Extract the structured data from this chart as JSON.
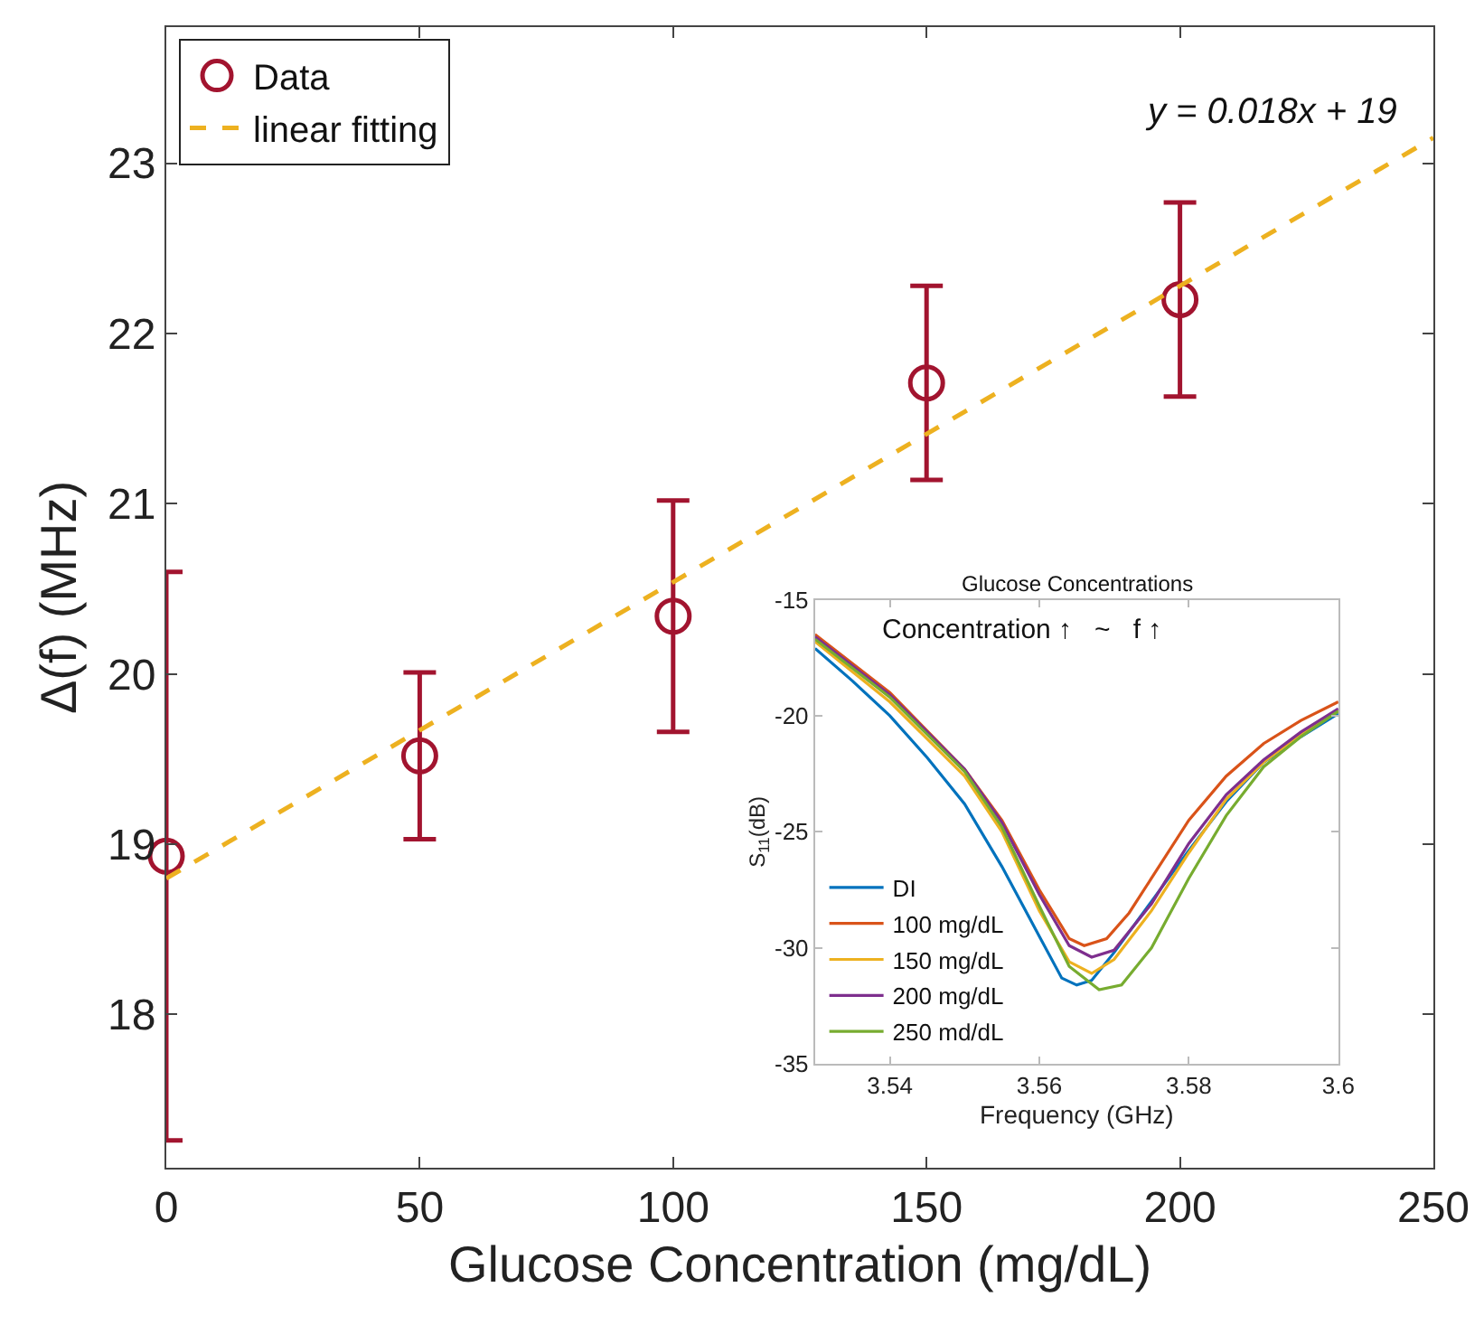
{
  "chart_data": [
    {
      "type": "scatter",
      "xlabel": "Glucose Concentration (mg/dL)",
      "ylabel": "Δ(f) (MHz)",
      "xlim": [
        0,
        250
      ],
      "xticks": [
        0,
        50,
        100,
        150,
        200,
        250
      ],
      "ylim": [
        17.1,
        23.8
      ],
      "yticks": [
        18,
        19,
        20,
        21,
        22,
        23
      ],
      "legend": "top left",
      "annotations": [
        "y = 0.018x + 19"
      ],
      "series": [
        {
          "name": "Data",
          "type": "scatter",
          "marker": "circle",
          "color": "#a2142f",
          "x": [
            0,
            50,
            100,
            150,
            200
          ],
          "values": [
            18.93,
            19.52,
            20.34,
            21.71,
            22.2
          ],
          "errors": [
            1.67,
            0.49,
            0.68,
            0.57,
            0.57
          ]
        },
        {
          "name": "linear fitting",
          "type": "line",
          "line_style": "dashed",
          "color": "#edb120",
          "x": [
            0,
            250
          ],
          "values": [
            18.8,
            23.15
          ]
        }
      ]
    },
    {
      "type": "line",
      "title": "Glucose Concentrations",
      "xlabel": "Frequency (GHz)",
      "ylabel": "S$_{11}$(dB)",
      "xlim": [
        3.53,
        3.6
      ],
      "xticks": [
        3.54,
        3.56,
        3.58,
        3.6
      ],
      "ylim": [
        -35,
        -15
      ],
      "yticks": [
        -35,
        -30,
        -25,
        -20,
        -15
      ],
      "legend": "bottom left",
      "annotations": [
        "Concentration ↑   ~   f ↑"
      ],
      "series": [
        {
          "name": "DI",
          "color": "#0072bd",
          "x": [
            3.53,
            3.535,
            3.54,
            3.545,
            3.55,
            3.555,
            3.56,
            3.563,
            3.565,
            3.567,
            3.57,
            3.575,
            3.58,
            3.585,
            3.59,
            3.595,
            3.6
          ],
          "values": [
            -17.1,
            -18.5,
            -20.0,
            -21.8,
            -23.8,
            -26.5,
            -29.5,
            -31.3,
            -31.6,
            -31.4,
            -30.2,
            -28.0,
            -25.8,
            -23.7,
            -22.0,
            -20.9,
            -19.9
          ]
        },
        {
          "name": "100 mg/dL",
          "color": "#d95319",
          "x": [
            3.53,
            3.54,
            3.55,
            3.555,
            3.56,
            3.564,
            3.566,
            3.569,
            3.572,
            3.575,
            3.58,
            3.585,
            3.59,
            3.595,
            3.6
          ],
          "values": [
            -16.5,
            -19.0,
            -22.3,
            -24.5,
            -27.5,
            -29.6,
            -29.9,
            -29.6,
            -28.5,
            -27.0,
            -24.5,
            -22.6,
            -21.2,
            -20.2,
            -19.4
          ]
        },
        {
          "name": "150 mg/dL",
          "color": "#edb120",
          "x": [
            3.53,
            3.54,
            3.55,
            3.555,
            3.56,
            3.564,
            3.567,
            3.57,
            3.575,
            3.58,
            3.585,
            3.59,
            3.595,
            3.6
          ],
          "values": [
            -16.8,
            -19.4,
            -22.6,
            -25.0,
            -28.4,
            -30.6,
            -31.1,
            -30.5,
            -28.4,
            -25.9,
            -23.6,
            -22.0,
            -20.8,
            -19.8
          ]
        },
        {
          "name": "200 mg/dL",
          "color": "#7e2f8e",
          "x": [
            3.53,
            3.54,
            3.55,
            3.555,
            3.56,
            3.564,
            3.567,
            3.57,
            3.575,
            3.58,
            3.585,
            3.59,
            3.595,
            3.6
          ],
          "values": [
            -16.6,
            -19.1,
            -22.3,
            -24.6,
            -27.7,
            -29.9,
            -30.4,
            -30.1,
            -28.1,
            -25.5,
            -23.4,
            -21.9,
            -20.7,
            -19.7
          ]
        },
        {
          "name": "250 md/dL",
          "color": "#77ac30",
          "x": [
            3.53,
            3.54,
            3.55,
            3.555,
            3.56,
            3.564,
            3.568,
            3.571,
            3.575,
            3.58,
            3.585,
            3.59,
            3.595,
            3.6
          ],
          "values": [
            -16.7,
            -19.2,
            -22.4,
            -24.8,
            -28.2,
            -30.8,
            -31.8,
            -31.6,
            -30.0,
            -27.0,
            -24.3,
            -22.2,
            -20.9,
            -19.8
          ]
        }
      ]
    }
  ]
}
